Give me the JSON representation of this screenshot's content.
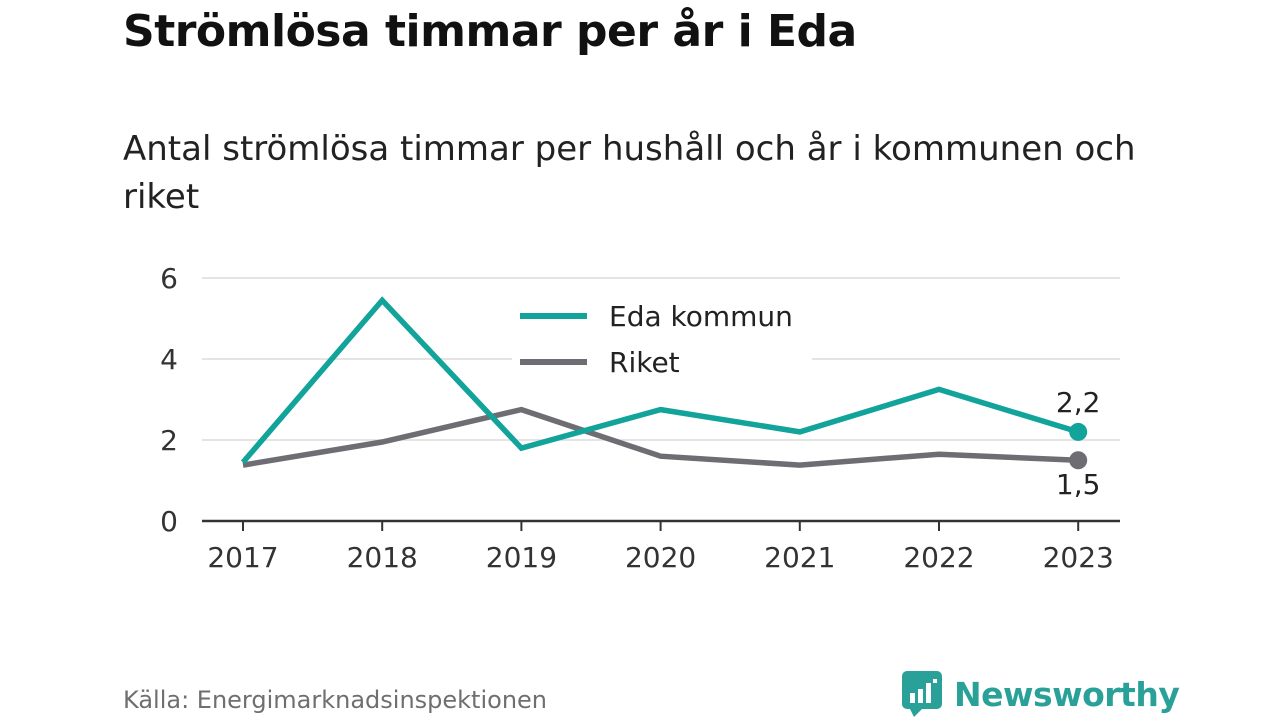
{
  "chart_data": {
    "type": "line",
    "title": "Strömlösa timmar per år i Eda",
    "subtitle": "Antal strömlösa timmar per hushåll och år i kommunen och riket",
    "categories": [
      "2017",
      "2018",
      "2019",
      "2020",
      "2021",
      "2022",
      "2023"
    ],
    "series": [
      {
        "name": "Eda kommun",
        "color": "#12a39a",
        "values": [
          1.45,
          5.45,
          1.8,
          2.75,
          2.2,
          3.25,
          2.2
        ]
      },
      {
        "name": "Riket",
        "color": "#6e6d74",
        "values": [
          1.38,
          1.95,
          2.75,
          1.6,
          1.38,
          1.65,
          1.5
        ]
      }
    ],
    "end_labels": [
      "2,2",
      "1,5"
    ],
    "ylim": [
      0,
      6
    ],
    "yticks": [
      0,
      2,
      4,
      6
    ],
    "grid": true,
    "legend": "top-center"
  },
  "source": "Källa: Energimarknadsinspektionen",
  "brand": {
    "name": "Newsworthy",
    "icon": "newsworthy-logo-icon",
    "color": "#2aa198"
  }
}
